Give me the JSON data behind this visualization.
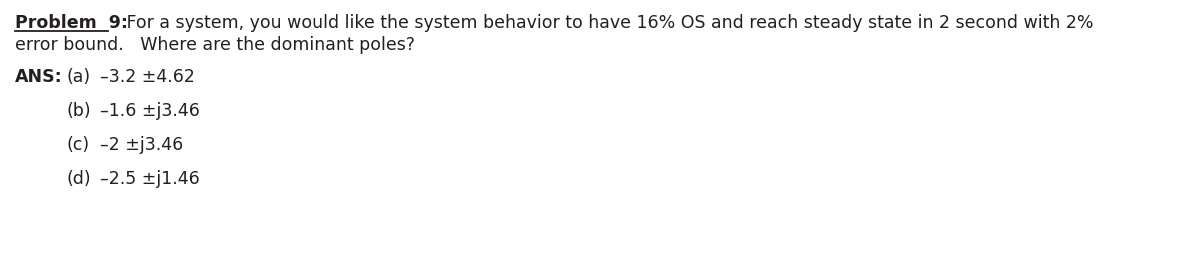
{
  "line1_bold": "Problem  9:",
  "line1_rest": "   For a system, you would like the system behavior to have 16% OS and reach steady state in 2 second with 2%",
  "line2": "error bound.   Where are the dominant poles?",
  "ans_label": "ANS:",
  "ans_a_label": "(a)",
  "ans_a_text": "–3.2 ±4.62",
  "options": [
    {
      "label": "(b)",
      "text": "–1.6 ±j3.46"
    },
    {
      "label": "(c)",
      "text": "–2 ±j3.46"
    },
    {
      "label": "(d)",
      "text": "–2.5 ±j1.46"
    }
  ],
  "background_color": "#ffffff",
  "text_color": "#231f20",
  "font_size": 12.5,
  "font_size_bold": 12.5,
  "underline_color": "#231f20"
}
